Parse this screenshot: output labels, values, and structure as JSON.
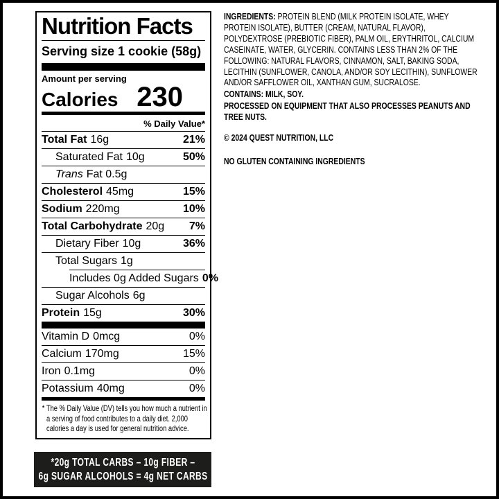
{
  "colors": {
    "background": "#ffffff",
    "text": "#000000",
    "panel_border": "#000000",
    "outer_border": "#000000",
    "net_carbs_bg": "#1d1d1b",
    "net_carbs_text": "#ffffff"
  },
  "label": {
    "title": "Nutrition Facts",
    "serving_size": "Serving size 1 cookie (58g)",
    "amount_per_serving": "Amount per serving",
    "calories_label": "Calories",
    "calories_value": "230",
    "daily_value_header": "% Daily Value*",
    "nutrient_rows": [
      {
        "name": "Total Fat",
        "amount": "16g",
        "dv": "21%",
        "indent": 0,
        "name_bold": true,
        "dv_bold": true
      },
      {
        "name": "Saturated Fat",
        "amount": "10g",
        "dv": "50%",
        "indent": 1,
        "dv_bold": true
      },
      {
        "name": "Trans",
        "amount": "Fat 0.5g",
        "dv": "",
        "indent": 1,
        "name_italic": true
      },
      {
        "name": "Cholesterol",
        "amount": "45mg",
        "dv": "15%",
        "indent": 0,
        "name_bold": true,
        "dv_bold": true
      },
      {
        "name": "Sodium",
        "amount": "220mg",
        "dv": "10%",
        "indent": 0,
        "name_bold": true,
        "dv_bold": true
      },
      {
        "name": "Total Carbohydrate",
        "amount": "20g",
        "dv": "7%",
        "indent": 0,
        "name_bold": true,
        "dv_bold": true
      },
      {
        "name": "Dietary Fiber",
        "amount": "10g",
        "dv": "36%",
        "indent": 1,
        "dv_bold": true
      },
      {
        "name": "Total Sugars",
        "amount": "1g",
        "dv": "",
        "indent": 1
      },
      {
        "name": "Includes 0g Added Sugars",
        "amount": "",
        "dv": "0%",
        "indent": 2,
        "dv_bold": true,
        "rule_indent": true
      },
      {
        "name": "Sugar Alcohols",
        "amount": "6g",
        "dv": "",
        "indent": 1
      },
      {
        "name": "Protein",
        "amount": "15g",
        "dv": "30%",
        "indent": 0,
        "name_bold": true,
        "dv_bold": true
      }
    ],
    "vitamin_rows": [
      {
        "name": "Vitamin D",
        "amount": "0mcg",
        "dv": "0%"
      },
      {
        "name": "Calcium",
        "amount": "170mg",
        "dv": "15%"
      },
      {
        "name": "Iron",
        "amount": "0.1mg",
        "dv": "0%"
      },
      {
        "name": "Potassium",
        "amount": "40mg",
        "dv": "0%"
      }
    ],
    "footnote": "* The % Daily Value (DV) tells you how much a nutrient in a serving of food contributes to a daily diet. 2,000 calories a day is used for general nutrition advice."
  },
  "right_column": {
    "ingredients_label": "INGREDIENTS:",
    "ingredients_text": " PROTEIN BLEND (MILK PROTEIN ISOLATE, WHEY PROTEIN ISOLATE), BUTTER (CREAM, NATURAL FLAVOR), POLYDEXTROSE (PREBIOTIC FIBER), PALM OIL, ERYTHRITOL, CALCIUM CASEINATE, WATER, GLYCERIN. CONTAINS LESS THAN 2% OF THE FOLLOWING: NATURAL FLAVORS, CINNAMON, SALT, BAKING SODA, LECITHIN (SUNFLOWER, CANOLA, AND/OR SOY LECITHIN), SUNFLOWER AND/OR SAFFLOWER OIL, XANTHAN GUM, SUCRALOSE.",
    "contains": "CONTAINS: MILK, SOY.",
    "processed": "PROCESSED ON EQUIPMENT THAT ALSO PROCESSES PEANUTS AND TREE NUTS.",
    "copyright": "© 2024 QUEST NUTRITION, LLC",
    "gluten_note": "NO GLUTEN CONTAINING INGREDIENTS"
  },
  "net_carbs_box": {
    "line1": "*20g TOTAL CARBS – 10g FIBER –",
    "line2": "6g SUGAR ALCOHOLS = 4g NET CARBS"
  }
}
